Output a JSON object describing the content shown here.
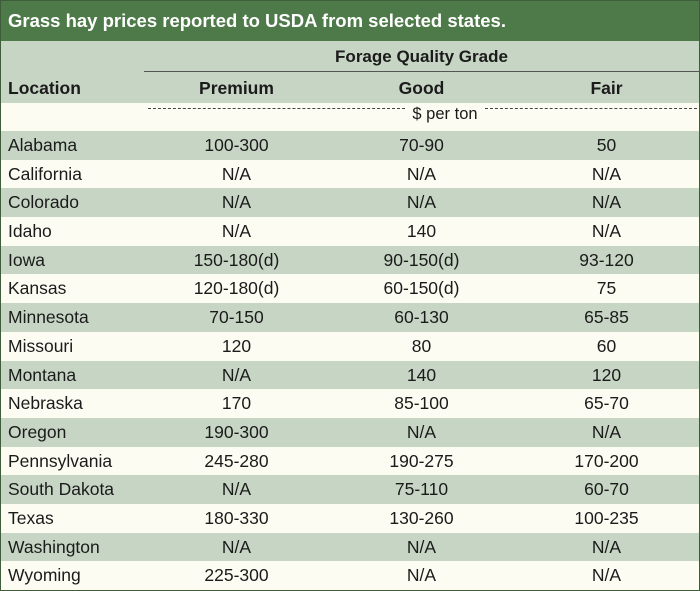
{
  "title": "Grass hay prices reported to USDA from selected states.",
  "header": {
    "group_label": "Forage Quality Grade",
    "location_label": "Location",
    "premium_label": "Premium",
    "good_label": "Good",
    "fair_label": "Fair",
    "unit_label": "$ per ton"
  },
  "colors": {
    "title_bar": "#4e7a4a",
    "band": "#c7d6c4",
    "background": "#fdfcf2"
  },
  "rows": [
    {
      "location": "Alabama",
      "premium": "100-300",
      "good": "70-90",
      "fair": "50"
    },
    {
      "location": "California",
      "premium": "N/A",
      "good": "N/A",
      "fair": "N/A"
    },
    {
      "location": "Colorado",
      "premium": "N/A",
      "good": "N/A",
      "fair": "N/A"
    },
    {
      "location": "Idaho",
      "premium": "N/A",
      "good": "140",
      "fair": "N/A"
    },
    {
      "location": "Iowa",
      "premium": "150-180(d)",
      "good": "90-150(d)",
      "fair": "93-120"
    },
    {
      "location": "Kansas",
      "premium": "120-180(d)",
      "good": "60-150(d)",
      "fair": "75"
    },
    {
      "location": "Minnesota",
      "premium": "70-150",
      "good": "60-130",
      "fair": "65-85"
    },
    {
      "location": "Missouri",
      "premium": "120",
      "good": "80",
      "fair": "60"
    },
    {
      "location": "Montana",
      "premium": "N/A",
      "good": "140",
      "fair": "120"
    },
    {
      "location": "Nebraska",
      "premium": "170",
      "good": "85-100",
      "fair": "65-70"
    },
    {
      "location": "Oregon",
      "premium": "190-300",
      "good": "N/A",
      "fair": "N/A"
    },
    {
      "location": "Pennsylvania",
      "premium": "245-280",
      "good": "190-275",
      "fair": "170-200"
    },
    {
      "location": "South Dakota",
      "premium": "N/A",
      "good": "75-110",
      "fair": "60-70"
    },
    {
      "location": "Texas",
      "premium": "180-330",
      "good": "130-260",
      "fair": "100-235"
    },
    {
      "location": "Washington",
      "premium": "N/A",
      "good": "N/A",
      "fair": "N/A"
    },
    {
      "location": "Wyoming",
      "premium": "225-300",
      "good": "N/A",
      "fair": "N/A"
    }
  ]
}
